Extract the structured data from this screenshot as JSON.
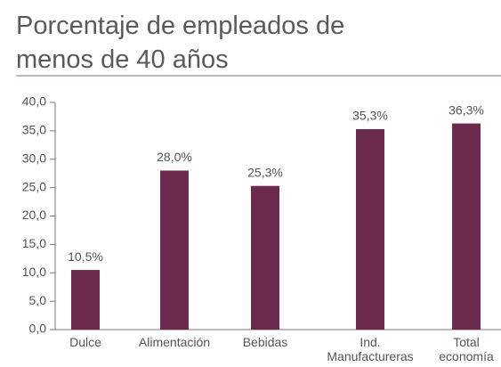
{
  "chart_data": {
    "type": "bar",
    "title": "Porcentaje de empleados de menos de 40 años",
    "categories": [
      "Dulce",
      "Alimentación",
      "Bebidas",
      "Ind. Manufactureras",
      "Total economía"
    ],
    "values": [
      10.5,
      28.0,
      25.3,
      35.3,
      36.3
    ],
    "value_labels": [
      "10,5%",
      "28,0%",
      "25,3%",
      "35,3%",
      "36,3%"
    ],
    "color": "#6b2a4e",
    "ylim": [
      0,
      40
    ],
    "yticks": [
      {
        "value": 0,
        "label": "0,0"
      },
      {
        "value": 5,
        "label": "5,0"
      },
      {
        "value": 10,
        "label": "10,0"
      },
      {
        "value": 15,
        "label": "15,0"
      },
      {
        "value": 20,
        "label": "20,0"
      },
      {
        "value": 25,
        "label": "25,0"
      },
      {
        "value": 30,
        "label": "30,0"
      },
      {
        "value": 35,
        "label": "35,0"
      },
      {
        "value": 40,
        "label": "40,0"
      }
    ],
    "grid": false
  }
}
